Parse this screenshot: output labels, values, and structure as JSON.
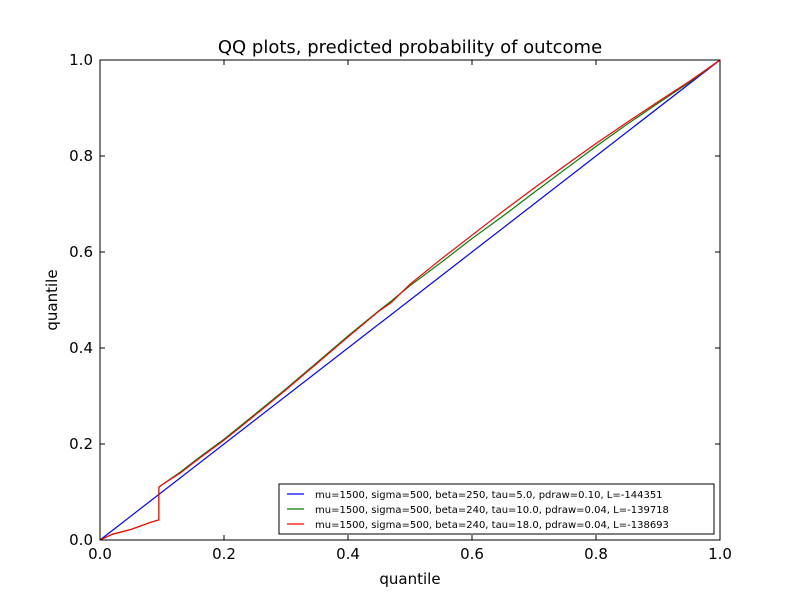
{
  "chart_data": {
    "type": "line",
    "title": "QQ plots, predicted probability of outcome",
    "xlabel": "quantile",
    "ylabel": "quantile",
    "xlim": [
      0.0,
      1.0
    ],
    "ylim": [
      0.0,
      1.0
    ],
    "xticks": [
      "0.0",
      "0.2",
      "0.4",
      "0.6",
      "0.8",
      "1.0"
    ],
    "yticks": [
      "0.0",
      "0.2",
      "0.4",
      "0.6",
      "0.8",
      "1.0"
    ],
    "grid": false,
    "legend_position": "lower-right",
    "series": [
      {
        "name": "mu=1500, sigma=500, beta=250, tau=5.0, pdraw=0.10, L=-144351",
        "color": "#0000ff",
        "points": [
          [
            0.0,
            0.0
          ],
          [
            1.0,
            1.0
          ]
        ]
      },
      {
        "name": "mu=1500, sigma=500, beta=240, tau=10.0, pdraw=0.04, L=-139718",
        "color": "#008000",
        "points": [
          [
            0.0,
            0.0
          ],
          [
            0.02,
            0.012
          ],
          [
            0.05,
            0.022
          ],
          [
            0.08,
            0.036
          ],
          [
            0.095,
            0.042
          ],
          [
            0.095,
            0.11
          ],
          [
            0.1,
            0.115
          ],
          [
            0.13,
            0.142
          ],
          [
            0.16,
            0.172
          ],
          [
            0.2,
            0.21
          ],
          [
            0.25,
            0.262
          ],
          [
            0.3,
            0.315
          ],
          [
            0.35,
            0.37
          ],
          [
            0.4,
            0.425
          ],
          [
            0.45,
            0.478
          ],
          [
            0.47,
            0.498
          ],
          [
            0.5,
            0.53
          ],
          [
            0.55,
            0.578
          ],
          [
            0.6,
            0.628
          ],
          [
            0.65,
            0.675
          ],
          [
            0.7,
            0.724
          ],
          [
            0.75,
            0.772
          ],
          [
            0.8,
            0.82
          ],
          [
            0.85,
            0.866
          ],
          [
            0.9,
            0.91
          ],
          [
            0.95,
            0.953
          ],
          [
            1.0,
            1.0
          ]
        ]
      },
      {
        "name": "mu=1500, sigma=500, beta=240, tau=18.0, pdraw=0.04, L=-138693",
        "color": "#ff0000",
        "points": [
          [
            0.0,
            0.0
          ],
          [
            0.02,
            0.012
          ],
          [
            0.05,
            0.022
          ],
          [
            0.08,
            0.036
          ],
          [
            0.095,
            0.042
          ],
          [
            0.095,
            0.11
          ],
          [
            0.1,
            0.115
          ],
          [
            0.13,
            0.14
          ],
          [
            0.16,
            0.17
          ],
          [
            0.2,
            0.208
          ],
          [
            0.25,
            0.26
          ],
          [
            0.3,
            0.313
          ],
          [
            0.35,
            0.368
          ],
          [
            0.4,
            0.423
          ],
          [
            0.45,
            0.477
          ],
          [
            0.47,
            0.495
          ],
          [
            0.5,
            0.533
          ],
          [
            0.55,
            0.585
          ],
          [
            0.6,
            0.635
          ],
          [
            0.65,
            0.685
          ],
          [
            0.7,
            0.733
          ],
          [
            0.75,
            0.78
          ],
          [
            0.8,
            0.826
          ],
          [
            0.85,
            0.87
          ],
          [
            0.9,
            0.913
          ],
          [
            0.95,
            0.955
          ],
          [
            1.0,
            1.0
          ]
        ]
      }
    ]
  }
}
